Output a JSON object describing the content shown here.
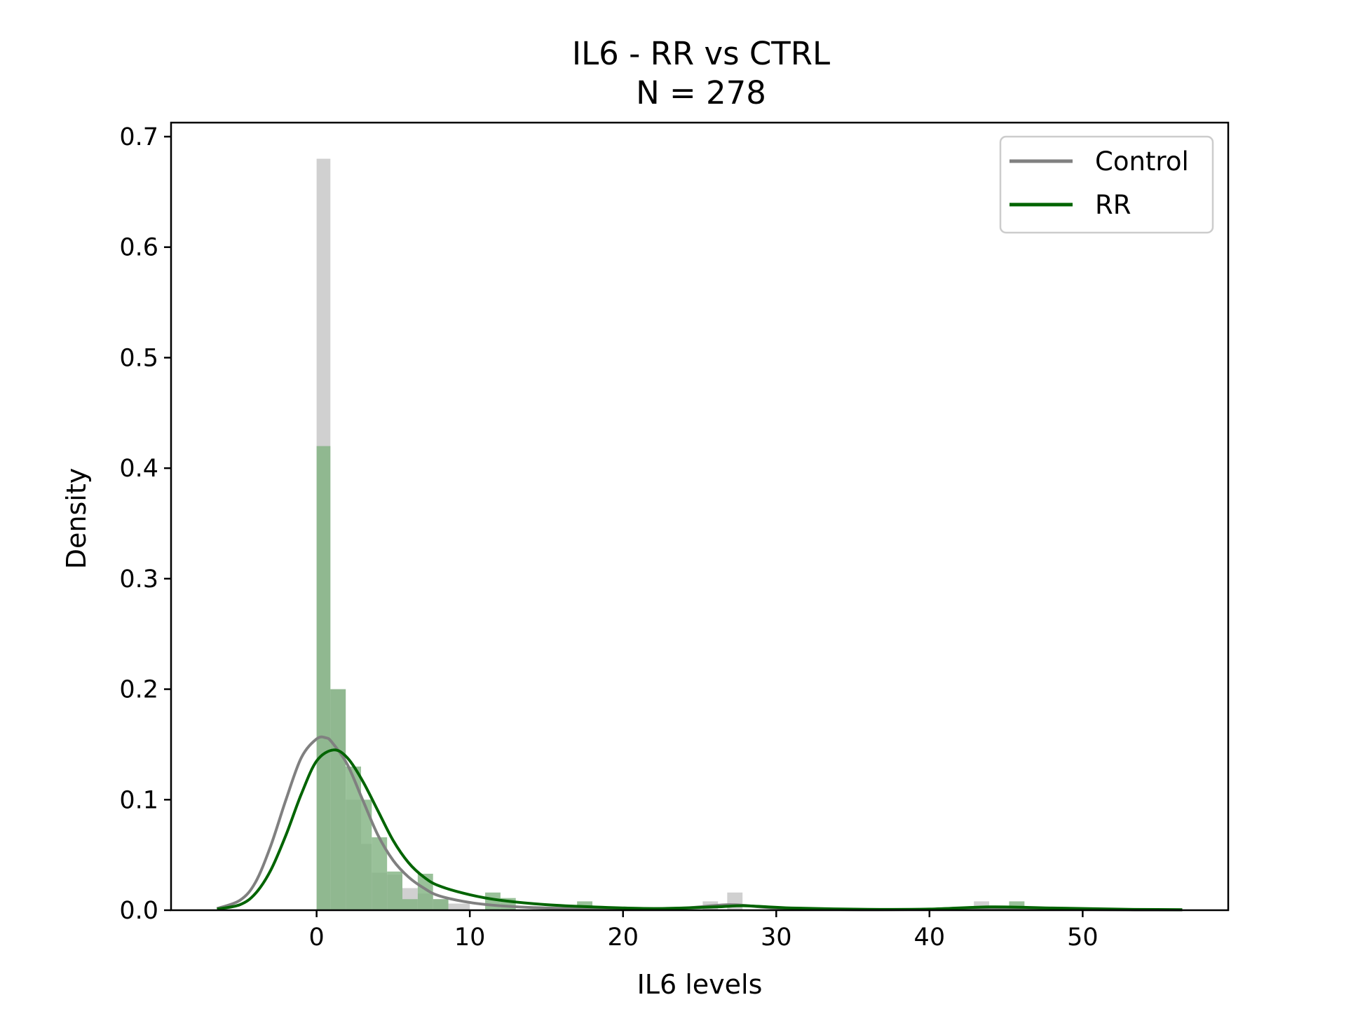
{
  "chart_data": {
    "type": "histogram+kde",
    "title": "IL6 - RR vs CTRL",
    "subtitle": "N = 278",
    "xlabel": "IL6 levels",
    "ylabel": "Density",
    "xlim": [
      -9.5,
      59.5
    ],
    "ylim": [
      0,
      0.7
    ],
    "xticks": [
      0,
      10,
      20,
      30,
      40,
      50
    ],
    "yticks": [
      0.0,
      0.1,
      0.2,
      0.3,
      0.4,
      0.5,
      0.6,
      0.7
    ],
    "xtick_labels": [
      "0",
      "10",
      "20",
      "30",
      "40",
      "50"
    ],
    "ytick_labels": [
      "0.0",
      "0.1",
      "0.2",
      "0.3",
      "0.4",
      "0.5",
      "0.6",
      "0.7"
    ],
    "grid": false,
    "legend": {
      "position": "top-right",
      "entries": [
        "Control",
        "RR"
      ]
    },
    "series": [
      {
        "name": "Control",
        "color": "#808080",
        "hist_color": "#c8c8c8",
        "bins": [
          {
            "x0": 0.0,
            "x1": 0.9,
            "d": 0.68
          },
          {
            "x0": 0.9,
            "x1": 1.9,
            "d": 0.2
          },
          {
            "x0": 1.9,
            "x1": 2.9,
            "d": 0.1
          },
          {
            "x0": 2.9,
            "x1": 3.6,
            "d": 0.06
          },
          {
            "x0": 3.6,
            "x1": 4.6,
            "d": 0.034
          },
          {
            "x0": 4.6,
            "x1": 5.6,
            "d": 0.032
          },
          {
            "x0": 5.6,
            "x1": 6.6,
            "d": 0.02
          },
          {
            "x0": 6.6,
            "x1": 7.6,
            "d": 0.015
          },
          {
            "x0": 7.6,
            "x1": 8.6,
            "d": 0.01
          },
          {
            "x0": 8.6,
            "x1": 10.0,
            "d": 0.006
          },
          {
            "x0": 25.2,
            "x1": 26.2,
            "d": 0.008
          },
          {
            "x0": 26.8,
            "x1": 27.8,
            "d": 0.016
          },
          {
            "x0": 42.9,
            "x1": 43.9,
            "d": 0.008
          }
        ],
        "kde": [
          [
            -6.5,
            0.0015
          ],
          [
            -5,
            0.009
          ],
          [
            -4,
            0.025
          ],
          [
            -3,
            0.058
          ],
          [
            -2,
            0.1
          ],
          [
            -1,
            0.138
          ],
          [
            0,
            0.155
          ],
          [
            0.6,
            0.156
          ],
          [
            1,
            0.152
          ],
          [
            2,
            0.132
          ],
          [
            3,
            0.1
          ],
          [
            4,
            0.068
          ],
          [
            5,
            0.045
          ],
          [
            6,
            0.03
          ],
          [
            7,
            0.02
          ],
          [
            8,
            0.013
          ],
          [
            10,
            0.007
          ],
          [
            12,
            0.004
          ],
          [
            15,
            0.002
          ],
          [
            20,
            0.0012
          ],
          [
            24,
            0.002
          ],
          [
            27,
            0.005
          ],
          [
            30,
            0.002
          ],
          [
            35,
            0.0005
          ],
          [
            40,
            0.0008
          ],
          [
            44,
            0.002
          ],
          [
            48,
            0.001
          ],
          [
            53,
            0.0003
          ],
          [
            56.5,
            0.0002
          ]
        ]
      },
      {
        "name": "RR",
        "color": "#006400",
        "hist_color": "#7fb27f",
        "bins": [
          {
            "x0": 0.0,
            "x1": 0.9,
            "d": 0.42
          },
          {
            "x0": 0.9,
            "x1": 1.9,
            "d": 0.2
          },
          {
            "x0": 1.9,
            "x1": 2.9,
            "d": 0.13
          },
          {
            "x0": 2.9,
            "x1": 3.6,
            "d": 0.1
          },
          {
            "x0": 3.6,
            "x1": 4.6,
            "d": 0.066
          },
          {
            "x0": 4.6,
            "x1": 5.6,
            "d": 0.035
          },
          {
            "x0": 5.6,
            "x1": 6.6,
            "d": 0.01
          },
          {
            "x0": 6.6,
            "x1": 7.6,
            "d": 0.033
          },
          {
            "x0": 7.6,
            "x1": 8.6,
            "d": 0.01
          },
          {
            "x0": 11.0,
            "x1": 12.0,
            "d": 0.016
          },
          {
            "x0": 12.0,
            "x1": 13.0,
            "d": 0.011
          },
          {
            "x0": 17.0,
            "x1": 18.0,
            "d": 0.008
          },
          {
            "x0": 45.2,
            "x1": 46.2,
            "d": 0.008
          }
        ],
        "kde": [
          [
            -6.5,
            0.001
          ],
          [
            -5,
            0.005
          ],
          [
            -4,
            0.015
          ],
          [
            -3,
            0.036
          ],
          [
            -2,
            0.068
          ],
          [
            -1,
            0.105
          ],
          [
            0,
            0.135
          ],
          [
            1.1,
            0.145
          ],
          [
            2,
            0.138
          ],
          [
            3,
            0.117
          ],
          [
            4,
            0.09
          ],
          [
            5,
            0.063
          ],
          [
            6,
            0.043
          ],
          [
            7,
            0.03
          ],
          [
            8,
            0.022
          ],
          [
            10,
            0.014
          ],
          [
            12,
            0.009
          ],
          [
            15,
            0.005
          ],
          [
            18,
            0.003
          ],
          [
            22,
            0.0015
          ],
          [
            26,
            0.003
          ],
          [
            28,
            0.004
          ],
          [
            31,
            0.002
          ],
          [
            36,
            0.0008
          ],
          [
            40,
            0.001
          ],
          [
            44,
            0.003
          ],
          [
            48,
            0.002
          ],
          [
            53,
            0.0008
          ],
          [
            56.5,
            0.0005
          ]
        ]
      }
    ]
  }
}
